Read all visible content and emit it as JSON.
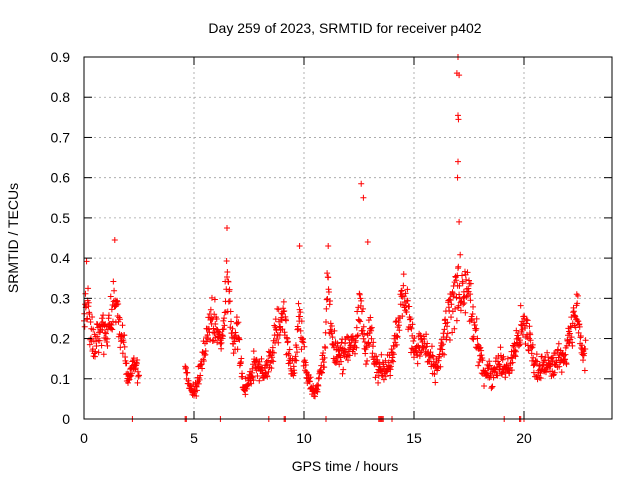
{
  "chart_data": {
    "type": "scatter",
    "title": "Day 259 of 2023, SRMTID for receiver p402",
    "xlabel": "GPS time / hours",
    "ylabel": "SRMTID / TECUs",
    "xlim": [
      0,
      24
    ],
    "ylim": [
      0,
      0.9
    ],
    "xticks": [
      0,
      5,
      10,
      15,
      20
    ],
    "yticks": [
      0,
      0.1,
      0.2,
      0.3,
      0.4,
      0.5,
      0.6,
      0.7,
      0.8,
      0.9
    ],
    "xtick_labels": [
      "0",
      "5",
      "10",
      "15",
      "20"
    ],
    "ytick_labels": [
      "0",
      "0.1",
      "0.2",
      "0.3",
      "0.4",
      "0.5",
      "0.6",
      "0.7",
      "0.8",
      "0.9"
    ],
    "grid": true,
    "marker": "+",
    "color": "#ff0000",
    "series": [
      {
        "name": "SRMTID",
        "segments": [
          [
            0,
            2.5
          ],
          [
            4.6,
            22.8
          ]
        ],
        "samples_per_hour": 60,
        "zero_points_x": [
          2.2,
          4.6,
          4.65,
          6.2,
          8.4,
          9.1,
          9.15,
          11.0,
          13.4,
          13.45,
          13.5,
          13.55,
          13.6,
          14.0,
          19.1,
          19.8,
          19.85,
          20.0
        ],
        "notable_points": [
          {
            "x": 1.4,
            "y": 0.445
          },
          {
            "x": 6.5,
            "y": 0.475
          },
          {
            "x": 9.8,
            "y": 0.43
          },
          {
            "x": 11.1,
            "y": 0.43
          },
          {
            "x": 12.6,
            "y": 0.585
          },
          {
            "x": 12.7,
            "y": 0.55
          },
          {
            "x": 12.9,
            "y": 0.44
          },
          {
            "x": 17.0,
            "y": 0.9
          },
          {
            "x": 16.95,
            "y": 0.86
          },
          {
            "x": 17.05,
            "y": 0.855
          },
          {
            "x": 17.0,
            "y": 0.755
          },
          {
            "x": 17.02,
            "y": 0.745
          },
          {
            "x": 17.0,
            "y": 0.64
          },
          {
            "x": 16.98,
            "y": 0.6
          },
          {
            "x": 17.05,
            "y": 0.49
          },
          {
            "x": 17.0,
            "y": 0.375
          },
          {
            "x": 22.4,
            "y": 0.31
          }
        ]
      }
    ]
  }
}
